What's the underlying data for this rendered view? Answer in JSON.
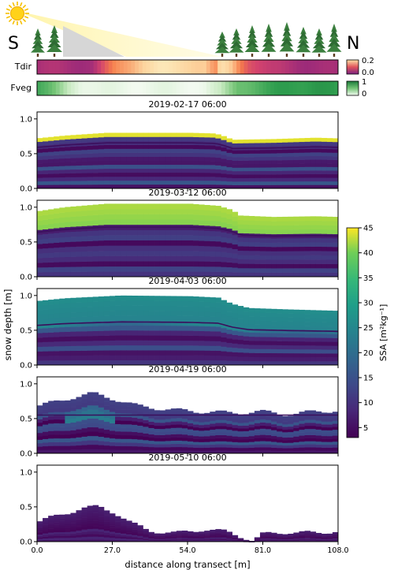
{
  "header": {
    "south_label": "S",
    "north_label": "N",
    "sun_icon": "sun-icon",
    "tree_icon": "conifer-tree-icon"
  },
  "strips": {
    "tdir": {
      "label": "Tdir",
      "colorbar_ticks": [
        "0.2",
        "0.0"
      ],
      "range": [
        0,
        0.2
      ],
      "colormap": "magma-like",
      "profile": [
        [
          0,
          0.05
        ],
        [
          20,
          0.05
        ],
        [
          28,
          0.12
        ],
        [
          36,
          0.16
        ],
        [
          44,
          0.18
        ],
        [
          54,
          0.17
        ],
        [
          60,
          0.16
        ],
        [
          64,
          0.12
        ],
        [
          66,
          0.17
        ],
        [
          70,
          0.15
        ],
        [
          76,
          0.1
        ],
        [
          84,
          0.06
        ],
        [
          96,
          0.05
        ],
        [
          108,
          0.04
        ]
      ]
    },
    "fveg": {
      "label": "Fveg",
      "colorbar_ticks": [
        "1",
        "0"
      ],
      "range": [
        0,
        1
      ],
      "colormap": "greens",
      "profile": [
        [
          0,
          0.7
        ],
        [
          4,
          0.55
        ],
        [
          10,
          0.3
        ],
        [
          16,
          0.1
        ],
        [
          22,
          0.05
        ],
        [
          60,
          0.05
        ],
        [
          66,
          0.2
        ],
        [
          72,
          0.55
        ],
        [
          80,
          0.65
        ],
        [
          90,
          0.75
        ],
        [
          100,
          0.8
        ],
        [
          108,
          0.7
        ]
      ]
    }
  },
  "chart_data": {
    "type": "heatmap",
    "xlabel": "distance along transect [m]",
    "ylabel": "snow depth [m]",
    "xlim": [
      0,
      108
    ],
    "ylim": [
      0,
      1.1
    ],
    "xticks": [
      "0.0",
      "27.0",
      "54.0",
      "81.0",
      "108.0"
    ],
    "yticks": [
      "0.0",
      "0.5",
      "1.0"
    ],
    "colorbar": {
      "label": "SSA [m²kg⁻¹]",
      "range": [
        3,
        45
      ],
      "ticks": [
        "45",
        "40",
        "35",
        "30",
        "25",
        "20",
        "15",
        "10",
        "5"
      ],
      "colormap": "viridis"
    },
    "panels": [
      {
        "title": "2019-02-17 06:00",
        "depth_profile": [
          [
            0,
            0.72
          ],
          [
            10,
            0.76
          ],
          [
            25,
            0.8
          ],
          [
            55,
            0.8
          ],
          [
            64,
            0.79
          ],
          [
            68,
            0.74
          ],
          [
            70,
            0.7
          ],
          [
            85,
            0.71
          ],
          [
            100,
            0.73
          ],
          [
            108,
            0.72
          ]
        ],
        "surface_ssa": 44,
        "surface_fraction": 0.05
      },
      {
        "title": "2019-03-12 06:00",
        "depth_profile": [
          [
            0,
            0.94
          ],
          [
            10,
            1.0
          ],
          [
            25,
            1.05
          ],
          [
            55,
            1.05
          ],
          [
            65,
            1.02
          ],
          [
            70,
            0.96
          ],
          [
            73,
            0.88
          ],
          [
            85,
            0.86
          ],
          [
            100,
            0.87
          ],
          [
            108,
            0.86
          ]
        ],
        "surface_ssa": 42,
        "surface_fraction": 0.26
      },
      {
        "title": "2019-04-03 06:00",
        "depth_profile": [
          [
            0,
            0.92
          ],
          [
            10,
            0.96
          ],
          [
            30,
            1.0
          ],
          [
            55,
            0.99
          ],
          [
            65,
            0.97
          ],
          [
            70,
            0.88
          ],
          [
            76,
            0.82
          ],
          [
            90,
            0.8
          ],
          [
            108,
            0.78
          ]
        ],
        "surface_ssa": 26,
        "surface_fraction": 0.3
      },
      {
        "title": "2019-04-19 06:00",
        "depth_profile": [
          [
            0,
            0.68
          ],
          [
            8,
            0.75
          ],
          [
            14,
            0.82
          ],
          [
            20,
            0.86
          ],
          [
            28,
            0.78
          ],
          [
            36,
            0.68
          ],
          [
            50,
            0.62
          ],
          [
            60,
            0.6
          ],
          [
            70,
            0.58
          ],
          [
            80,
            0.6
          ],
          [
            90,
            0.56
          ],
          [
            100,
            0.6
          ],
          [
            108,
            0.62
          ]
        ],
        "surface_ssa": 12,
        "surface_fraction": 0.2
      },
      {
        "title": "2019-05-10 06:00",
        "depth_profile": [
          [
            0,
            0.28
          ],
          [
            8,
            0.38
          ],
          [
            16,
            0.48
          ],
          [
            22,
            0.5
          ],
          [
            28,
            0.42
          ],
          [
            34,
            0.26
          ],
          [
            40,
            0.16
          ],
          [
            50,
            0.12
          ],
          [
            60,
            0.18
          ],
          [
            68,
            0.14
          ],
          [
            76,
            0.04
          ],
          [
            78,
            0.0
          ],
          [
            80,
            0.1
          ],
          [
            90,
            0.14
          ],
          [
            100,
            0.12
          ],
          [
            108,
            0.16
          ]
        ],
        "surface_ssa": 7,
        "surface_fraction": 0.6
      }
    ]
  }
}
